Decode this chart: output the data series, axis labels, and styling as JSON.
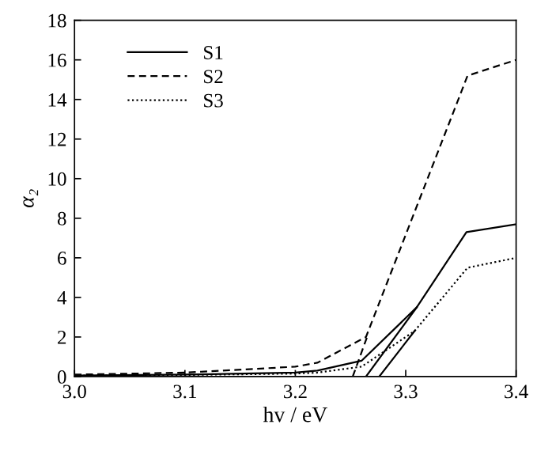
{
  "chart_data": {
    "type": "line",
    "xlabel": "hv / eV",
    "ylabel": "α₂",
    "xlim": [
      3.0,
      3.4
    ],
    "xticks": [
      {
        "value": 3.0,
        "label": "3.0"
      },
      3.1,
      3.2,
      3.3,
      3.4
    ],
    "ylim": [
      0,
      18
    ],
    "yticks": [
      0,
      2,
      4,
      6,
      8,
      10,
      12,
      14,
      16,
      18
    ],
    "grid": false,
    "legend": "top left",
    "marker": "none",
    "series": [
      {
        "name": "S1",
        "color": "#000000",
        "line_style": "solid",
        "x": [
          3.0,
          3.1,
          3.2,
          3.22,
          3.26,
          3.31,
          3.355,
          3.4
        ],
        "values": [
          0.05,
          0.1,
          0.2,
          0.3,
          0.8,
          3.5,
          7.3,
          7.7
        ]
      },
      {
        "name": "S2",
        "color": "#000000",
        "line_style": "dashed",
        "x": [
          3.0,
          3.1,
          3.2,
          3.22,
          3.264,
          3.356,
          3.4
        ],
        "values": [
          0.1,
          0.2,
          0.5,
          0.7,
          2.0,
          15.2,
          16.0
        ]
      },
      {
        "name": "S3",
        "color": "#000000",
        "line_style": "dotted",
        "x": [
          3.0,
          3.1,
          3.2,
          3.22,
          3.26,
          3.308,
          3.356,
          3.4
        ],
        "values": [
          0.05,
          0.08,
          0.15,
          0.2,
          0.5,
          2.3,
          5.5,
          6.0
        ]
      },
      {
        "type": "line",
        "color": "#000000",
        "line_style": "dashed",
        "x": [
          3.252,
          3.265
        ],
        "values": [
          0,
          2.0
        ]
      },
      {
        "type": "line",
        "color": "#000000",
        "line_style": "solid",
        "x": [
          3.264,
          3.31
        ],
        "values": [
          0,
          3.5
        ]
      },
      {
        "type": "line",
        "color": "#000000",
        "line_style": "solid",
        "x": [
          3.276,
          3.308
        ],
        "values": [
          0,
          2.3
        ]
      }
    ]
  }
}
